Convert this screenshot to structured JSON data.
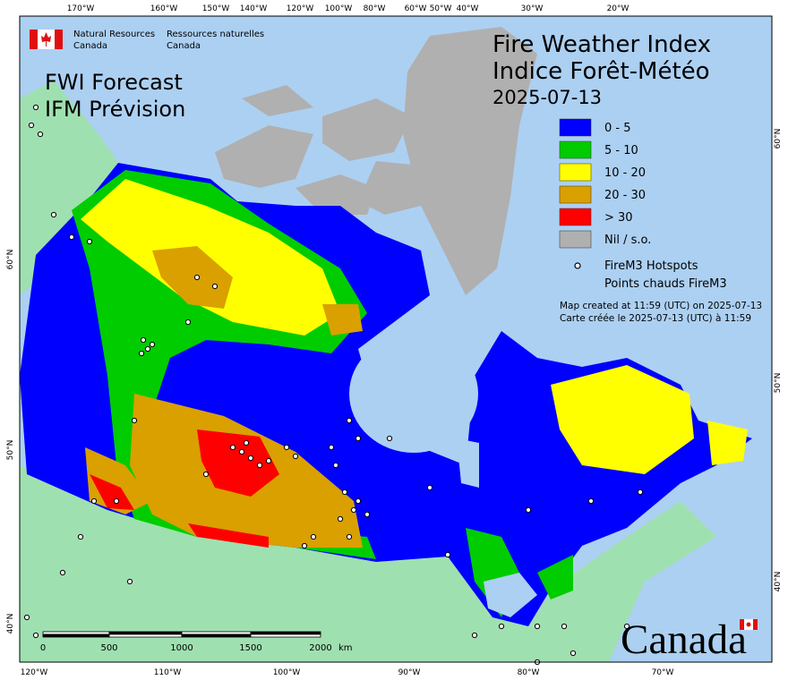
{
  "header": {
    "agency_en_1": "Natural Resources",
    "agency_en_2": "Canada",
    "agency_fr_1": "Ressources naturelles",
    "agency_fr_2": "Canada"
  },
  "title": {
    "line_1": "Fire Weather Index",
    "line_2": "Indice Forêt-Météo",
    "date": "2025-07-13"
  },
  "subtitle": {
    "line_1": "FWI Forecast",
    "line_2": "IFM Prévision"
  },
  "legend": {
    "items": [
      {
        "label": "0 - 5",
        "color": "#0000ff"
      },
      {
        "label": "5 - 10",
        "color": "#00cc00"
      },
      {
        "label": "10 - 20",
        "color": "#ffff00"
      },
      {
        "label": "20 - 30",
        "color": "#d9a000"
      },
      {
        "label": "> 30",
        "color": "#ff0000"
      },
      {
        "label": "Nil / s.o.",
        "color": "#b0b0b0"
      }
    ],
    "hotspots_1": "FireM3 Hotspots",
    "hotspots_2": "Points chauds FireM3"
  },
  "note": {
    "line_1": "Map created at 11:59 (UTC) on 2025-07-13",
    "line_2": "Carte créée le 2025-07-13 (UTC) à 11:59"
  },
  "top_ticks": [
    "170°W",
    "160°W",
    "150°W",
    "140°W",
    "120°W",
    "100°W",
    "80°W",
    "60°W",
    "50°W",
    "40°W",
    "30°W",
    "20°W"
  ],
  "bottom_ticks": [
    "120°W",
    "110°W",
    "100°W",
    "90°W",
    "80°W",
    "70°W"
  ],
  "left_ticks": [
    "60°N",
    "50°N",
    "40°N"
  ],
  "right_ticks": [
    "60°N",
    "50°N",
    "40°N"
  ],
  "scale_bar": {
    "labels": [
      "0",
      "500",
      "1000",
      "1500",
      "2000"
    ],
    "unit": "km"
  },
  "wordmark": "Canada"
}
